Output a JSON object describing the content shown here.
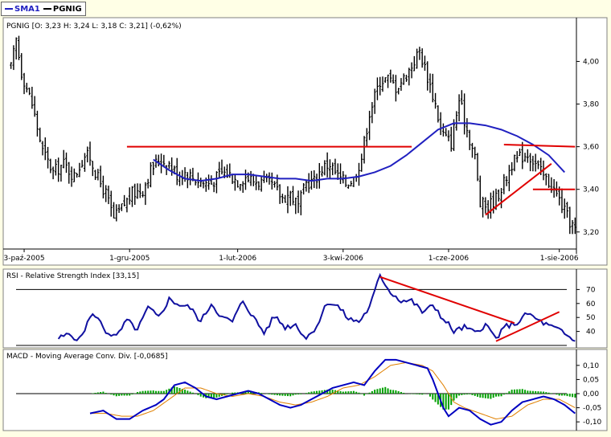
{
  "legend": [
    {
      "name": "SMA1",
      "color": "#2020c0"
    },
    {
      "name": "PGNIG",
      "color": "#000000"
    }
  ],
  "panels": {
    "price_title": "PGNIG [O: 3,23  H: 3,24  L: 3,18  C: 3,21] (-0,62%)",
    "rsi_title": "RSI - Relative Strength Index [33,15]",
    "macd_title": "MACD - Moving Average Conv. Div. [-0,0685]"
  },
  "colors": {
    "background": "#ffffe6",
    "panel": "#ffffff",
    "sma": "#2020c0",
    "rsi": "#1010a0",
    "trendline": "#e00000",
    "macd": "#0000c0",
    "signal": "#e08000",
    "hist": "#00a000"
  },
  "chart_data": [
    {
      "type": "ohlc",
      "name": "PGNIG",
      "x_tick_labels": [
        "3-paź-2005",
        "1-gru-2005",
        "1-lut-2006",
        "3-kwi-2006",
        "1-cze-2006",
        "1-sie-2006"
      ],
      "x_tick_index": [
        5,
        45,
        86,
        126,
        166,
        208
      ],
      "y_ticks": [
        "4,00",
        "3,80",
        "3,60",
        "3,40",
        "3,20"
      ],
      "y_tick_values": [
        4.0,
        3.8,
        3.6,
        3.4,
        3.2
      ],
      "ylim": [
        3.12,
        4.16
      ],
      "n_bars": 215,
      "close_points": [
        [
          0,
          3.97
        ],
        [
          2,
          4.1
        ],
        [
          4,
          3.95
        ],
        [
          8,
          3.8
        ],
        [
          12,
          3.58
        ],
        [
          16,
          3.48
        ],
        [
          20,
          3.52
        ],
        [
          24,
          3.46
        ],
        [
          28,
          3.56
        ],
        [
          30,
          3.55
        ],
        [
          33,
          3.45
        ],
        [
          36,
          3.38
        ],
        [
          39,
          3.26
        ],
        [
          43,
          3.33
        ],
        [
          46,
          3.38
        ],
        [
          50,
          3.4
        ],
        [
          53,
          3.49
        ],
        [
          56,
          3.54
        ],
        [
          60,
          3.52
        ],
        [
          63,
          3.47
        ],
        [
          66,
          3.48
        ],
        [
          70,
          3.45
        ],
        [
          73,
          3.43
        ],
        [
          76,
          3.43
        ],
        [
          80,
          3.48
        ],
        [
          83,
          3.47
        ],
        [
          86,
          3.44
        ],
        [
          89,
          3.46
        ],
        [
          92,
          3.44
        ],
        [
          96,
          3.43
        ],
        [
          99,
          3.42
        ],
        [
          103,
          3.36
        ],
        [
          106,
          3.38
        ],
        [
          109,
          3.32
        ],
        [
          112,
          3.43
        ],
        [
          115,
          3.44
        ],
        [
          118,
          3.5
        ],
        [
          121,
          3.52
        ],
        [
          124,
          3.46
        ],
        [
          127,
          3.43
        ],
        [
          130,
          3.45
        ],
        [
          133,
          3.55
        ],
        [
          136,
          3.76
        ],
        [
          140,
          3.91
        ],
        [
          143,
          3.92
        ],
        [
          146,
          3.88
        ],
        [
          149,
          3.92
        ],
        [
          152,
          3.98
        ],
        [
          155,
          4.05
        ],
        [
          158,
          3.93
        ],
        [
          161,
          3.8
        ],
        [
          163,
          3.68
        ],
        [
          165,
          3.64
        ],
        [
          167,
          3.62
        ],
        [
          170,
          3.82
        ],
        [
          173,
          3.68
        ],
        [
          176,
          3.55
        ],
        [
          178,
          3.33
        ],
        [
          181,
          3.32
        ],
        [
          184,
          3.36
        ],
        [
          187,
          3.43
        ],
        [
          190,
          3.52
        ],
        [
          193,
          3.55
        ],
        [
          196,
          3.57
        ],
        [
          199,
          3.52
        ],
        [
          202,
          3.46
        ],
        [
          205,
          3.42
        ],
        [
          208,
          3.35
        ],
        [
          211,
          3.27
        ],
        [
          214,
          3.21
        ]
      ],
      "sma_points": [
        [
          54,
          3.54
        ],
        [
          60,
          3.49
        ],
        [
          66,
          3.45
        ],
        [
          72,
          3.44
        ],
        [
          78,
          3.45
        ],
        [
          84,
          3.47
        ],
        [
          90,
          3.47
        ],
        [
          96,
          3.46
        ],
        [
          102,
          3.45
        ],
        [
          108,
          3.45
        ],
        [
          114,
          3.44
        ],
        [
          120,
          3.45
        ],
        [
          126,
          3.45
        ],
        [
          132,
          3.46
        ],
        [
          138,
          3.48
        ],
        [
          144,
          3.51
        ],
        [
          150,
          3.56
        ],
        [
          156,
          3.62
        ],
        [
          162,
          3.68
        ],
        [
          168,
          3.71
        ],
        [
          174,
          3.71
        ],
        [
          180,
          3.7
        ],
        [
          186,
          3.68
        ],
        [
          192,
          3.65
        ],
        [
          198,
          3.61
        ],
        [
          204,
          3.56
        ],
        [
          210,
          3.48
        ]
      ],
      "trendlines": [
        {
          "from": [
            44,
            3.6
          ],
          "to": [
            152,
            3.6
          ]
        },
        {
          "from": [
            187,
            3.61
          ],
          "to": [
            214,
            3.6
          ]
        },
        {
          "from": [
            180,
            3.28
          ],
          "to": [
            205,
            3.52
          ]
        },
        {
          "from": [
            198,
            3.4
          ],
          "to": [
            214,
            3.4
          ]
        }
      ]
    },
    {
      "type": "line",
      "name": "RSI",
      "y_ticks": [
        "70",
        "60",
        "50",
        "40"
      ],
      "y_tick_values": [
        70,
        60,
        50,
        40
      ],
      "ylim": [
        30,
        80
      ],
      "levels": [
        70,
        30
      ],
      "points": [
        [
          18,
          35
        ],
        [
          22,
          38
        ],
        [
          26,
          34
        ],
        [
          30,
          50
        ],
        [
          32,
          52
        ],
        [
          36,
          40
        ],
        [
          40,
          36
        ],
        [
          44,
          48
        ],
        [
          48,
          41
        ],
        [
          52,
          57
        ],
        [
          56,
          50
        ],
        [
          60,
          63
        ],
        [
          64,
          59
        ],
        [
          68,
          57
        ],
        [
          72,
          47
        ],
        [
          76,
          60
        ],
        [
          80,
          50
        ],
        [
          84,
          47
        ],
        [
          88,
          62
        ],
        [
          92,
          50
        ],
        [
          96,
          39
        ],
        [
          100,
          51
        ],
        [
          104,
          43
        ],
        [
          108,
          45
        ],
        [
          112,
          35
        ],
        [
          116,
          44
        ],
        [
          120,
          61
        ],
        [
          124,
          58
        ],
        [
          128,
          49
        ],
        [
          132,
          47
        ],
        [
          136,
          57
        ],
        [
          140,
          80
        ],
        [
          144,
          68
        ],
        [
          148,
          62
        ],
        [
          152,
          62
        ],
        [
          156,
          54
        ],
        [
          160,
          58
        ],
        [
          162,
          55
        ],
        [
          164,
          48
        ],
        [
          166,
          45
        ],
        [
          168,
          40
        ],
        [
          172,
          43
        ],
        [
          176,
          39
        ],
        [
          180,
          45
        ],
        [
          184,
          35
        ],
        [
          188,
          44
        ],
        [
          192,
          46
        ],
        [
          196,
          53
        ],
        [
          200,
          48
        ],
        [
          204,
          44
        ],
        [
          208,
          41
        ],
        [
          210,
          38
        ],
        [
          214,
          33
        ]
      ],
      "trendlines": [
        {
          "from": [
            140,
            79
          ],
          "to": [
            191,
            46
          ]
        },
        {
          "from": [
            184,
            33
          ],
          "to": [
            208,
            54
          ]
        }
      ]
    },
    {
      "type": "line",
      "name": "MACD",
      "y_ticks": [
        "0,10",
        "0,05",
        "0,00",
        "-0,05",
        "-0,10"
      ],
      "y_tick_values": [
        0.1,
        0.05,
        0.0,
        -0.05,
        -0.1
      ],
      "ylim": [
        -0.128,
        0.128
      ],
      "zero": 0,
      "macd_points": [
        [
          30,
          -0.07
        ],
        [
          35,
          -0.06
        ],
        [
          40,
          -0.09
        ],
        [
          45,
          -0.09
        ],
        [
          50,
          -0.06
        ],
        [
          55,
          -0.04
        ],
        [
          58,
          -0.02
        ],
        [
          62,
          0.03
        ],
        [
          66,
          0.04
        ],
        [
          70,
          0.02
        ],
        [
          74,
          -0.01
        ],
        [
          78,
          -0.02
        ],
        [
          82,
          -0.01
        ],
        [
          86,
          0.0
        ],
        [
          90,
          0.01
        ],
        [
          94,
          0.0
        ],
        [
          98,
          -0.02
        ],
        [
          102,
          -0.04
        ],
        [
          106,
          -0.05
        ],
        [
          110,
          -0.04
        ],
        [
          114,
          -0.02
        ],
        [
          118,
          0.0
        ],
        [
          122,
          0.02
        ],
        [
          126,
          0.03
        ],
        [
          130,
          0.04
        ],
        [
          134,
          0.03
        ],
        [
          138,
          0.08
        ],
        [
          142,
          0.12
        ],
        [
          146,
          0.12
        ],
        [
          150,
          0.11
        ],
        [
          154,
          0.1
        ],
        [
          158,
          0.09
        ],
        [
          160,
          0.05
        ],
        [
          162,
          0.0
        ],
        [
          164,
          -0.05
        ],
        [
          166,
          -0.08
        ],
        [
          170,
          -0.05
        ],
        [
          174,
          -0.06
        ],
        [
          178,
          -0.09
        ],
        [
          182,
          -0.11
        ],
        [
          186,
          -0.1
        ],
        [
          190,
          -0.06
        ],
        [
          194,
          -0.03
        ],
        [
          198,
          -0.02
        ],
        [
          202,
          -0.01
        ],
        [
          206,
          -0.02
        ],
        [
          210,
          -0.04
        ],
        [
          214,
          -0.07
        ]
      ],
      "signal_points": [
        [
          30,
          -0.07
        ],
        [
          36,
          -0.07
        ],
        [
          42,
          -0.08
        ],
        [
          48,
          -0.08
        ],
        [
          54,
          -0.06
        ],
        [
          60,
          -0.02
        ],
        [
          66,
          0.02
        ],
        [
          72,
          0.02
        ],
        [
          78,
          0.0
        ],
        [
          84,
          -0.01
        ],
        [
          90,
          0.0
        ],
        [
          96,
          -0.01
        ],
        [
          102,
          -0.03
        ],
        [
          108,
          -0.04
        ],
        [
          114,
          -0.03
        ],
        [
          120,
          -0.01
        ],
        [
          126,
          0.02
        ],
        [
          132,
          0.03
        ],
        [
          138,
          0.06
        ],
        [
          144,
          0.1
        ],
        [
          150,
          0.11
        ],
        [
          156,
          0.1
        ],
        [
          160,
          0.08
        ],
        [
          164,
          0.03
        ],
        [
          168,
          -0.03
        ],
        [
          172,
          -0.05
        ],
        [
          178,
          -0.07
        ],
        [
          184,
          -0.09
        ],
        [
          190,
          -0.08
        ],
        [
          196,
          -0.04
        ],
        [
          202,
          -0.02
        ],
        [
          208,
          -0.02
        ],
        [
          214,
          -0.05
        ]
      ]
    }
  ]
}
